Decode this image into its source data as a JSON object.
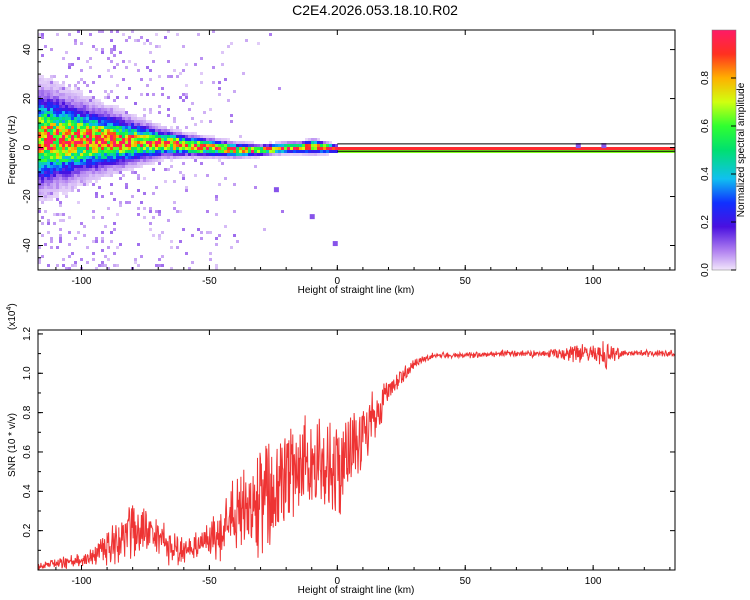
{
  "figure_title": "C2E4.2026.053.18.10.R02",
  "chart_data": [
    {
      "type": "heatmap",
      "title": "C2E4.2026.053.18.10.R02",
      "xlabel": "Height of straight line (km)",
      "ylabel": "Frequency (Hz)",
      "xlim": [
        -117,
        132
      ],
      "ylim": [
        -50,
        48
      ],
      "xticks": [
        -100,
        -50,
        0,
        50,
        100
      ],
      "yticks": [
        -40,
        -20,
        0,
        20,
        40
      ],
      "xtick_labels": [
        "-100",
        "-50",
        "0",
        "50",
        "100"
      ],
      "ytick_labels": [
        "-40",
        "-20",
        "0",
        "20",
        "40"
      ],
      "reference_lines_hz": [
        -1.5,
        1.5
      ],
      "ridge": {
        "x": [
          -117,
          -100,
          -90,
          -80,
          -70,
          -60,
          -50,
          -40,
          -30,
          -25,
          -20,
          -15,
          -10,
          -5,
          0,
          50,
          100,
          132
        ],
        "freq": [
          4,
          4,
          3.5,
          3,
          2.5,
          1.5,
          0.5,
          -0.5,
          -0.5,
          0,
          0.5,
          0.5,
          1,
          0.5,
          0,
          0,
          0,
          0
        ],
        "spread": [
          14,
          10,
          8,
          6,
          4,
          3,
          2.5,
          2,
          1.5,
          1.5,
          1.5,
          1.5,
          2,
          1.5,
          1,
          1,
          1,
          1
        ]
      },
      "outliers": [
        {
          "x": -24,
          "freq": -17
        },
        {
          "x": -10,
          "freq": -28
        },
        {
          "x": -1,
          "freq": -39
        },
        {
          "x": 94,
          "freq": 1
        },
        {
          "x": 104,
          "freq": 1
        }
      ],
      "colorbar": {
        "label": "Normalized spectral amplitude",
        "range": [
          0,
          1
        ],
        "ticks": [
          0.0,
          0.2,
          0.4,
          0.6,
          0.8
        ],
        "tick_labels": [
          "0.0",
          "0.2",
          "0.4",
          "0.6",
          "0.8"
        ]
      }
    },
    {
      "type": "line",
      "xlabel": "Height of straight line (km)",
      "ylabel": "SNR (10 * v/v)",
      "y_multiplier": "(x10",
      "y_multiplier_exp": "4",
      "y_multiplier_close": ")",
      "xlim": [
        -117,
        132
      ],
      "ylim": [
        0,
        1.22
      ],
      "xticks": [
        -100,
        -50,
        0,
        50,
        100
      ],
      "yticks": [
        0.2,
        0.4,
        0.6,
        0.8,
        1.0,
        1.2
      ],
      "xtick_labels": [
        "-100",
        "-50",
        "0",
        "50",
        "100"
      ],
      "ytick_labels": [
        "0.2",
        "0.4",
        "0.6",
        "0.8",
        "1.0",
        "1.2"
      ],
      "series": [
        {
          "name": "SNR",
          "color": "#ee3333",
          "x": [
            -117,
            -110,
            -100,
            -95,
            -90,
            -85,
            -80,
            -75,
            -70,
            -65,
            -60,
            -55,
            -50,
            -45,
            -40,
            -35,
            -30,
            -25,
            -20,
            -15,
            -10,
            -5,
            0,
            5,
            10,
            15,
            20,
            25,
            30,
            35,
            40,
            50,
            60,
            70,
            80,
            90,
            95,
            100,
            105,
            110,
            115,
            120,
            125,
            132
          ],
          "base": [
            0.02,
            0.03,
            0.05,
            0.08,
            0.12,
            0.15,
            0.2,
            0.2,
            0.15,
            0.12,
            0.1,
            0.12,
            0.15,
            0.2,
            0.25,
            0.3,
            0.35,
            0.4,
            0.45,
            0.5,
            0.55,
            0.5,
            0.52,
            0.6,
            0.7,
            0.8,
            0.9,
            0.98,
            1.05,
            1.08,
            1.09,
            1.09,
            1.1,
            1.1,
            1.1,
            1.1,
            1.1,
            1.1,
            1.1,
            1.1,
            1.1,
            1.1,
            1.1,
            1.1
          ],
          "jitter": [
            0.03,
            0.03,
            0.04,
            0.08,
            0.14,
            0.15,
            0.16,
            0.15,
            0.12,
            0.1,
            0.08,
            0.1,
            0.14,
            0.2,
            0.25,
            0.3,
            0.35,
            0.35,
            0.3,
            0.3,
            0.3,
            0.3,
            0.3,
            0.25,
            0.2,
            0.15,
            0.1,
            0.06,
            0.03,
            0.02,
            0.02,
            0.02,
            0.02,
            0.02,
            0.02,
            0.04,
            0.07,
            0.07,
            0.08,
            0.04,
            0.02,
            0.02,
            0.02,
            0.02
          ]
        }
      ]
    }
  ]
}
